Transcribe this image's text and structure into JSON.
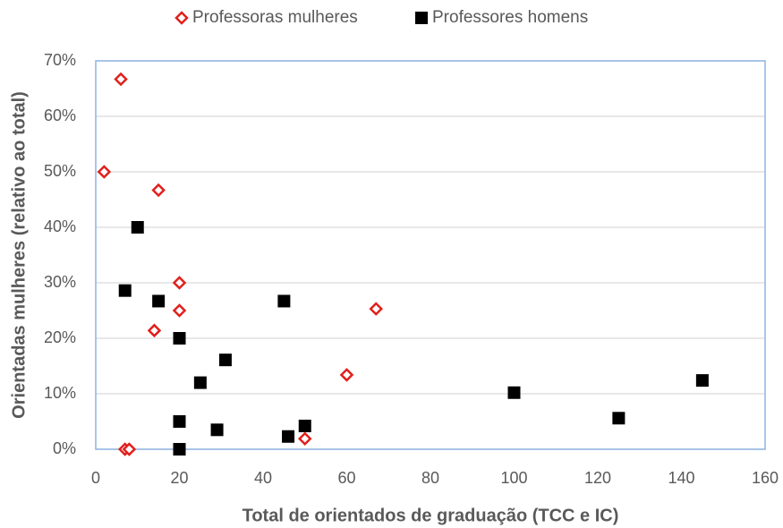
{
  "chart_data": {
    "type": "scatter",
    "xlabel": "Total de orientados de graduação (TCC e IC)",
    "ylabel": "Orientadas mulheres (relativo ao total)",
    "xlim": [
      0,
      160
    ],
    "xticks": [
      0,
      20,
      40,
      60,
      80,
      100,
      120,
      140,
      160
    ],
    "ylim": [
      0,
      70
    ],
    "yticks": [
      {
        "value": 0,
        "label": "0%"
      },
      {
        "value": 10,
        "label": "10%"
      },
      {
        "value": 20,
        "label": "20%"
      },
      {
        "value": 30,
        "label": "30%"
      },
      {
        "value": 40,
        "label": "40%"
      },
      {
        "value": 50,
        "label": "50%"
      },
      {
        "value": 60,
        "label": "60%"
      },
      {
        "value": 70,
        "label": "70%"
      }
    ],
    "grid": true,
    "legend": "top",
    "series": [
      {
        "name": "Professoras mulheres",
        "color": "#e0201b",
        "marker": "diamond",
        "x": [
          6,
          2,
          15,
          20,
          20,
          14,
          67,
          60,
          50,
          7,
          8
        ],
        "values": [
          66.7,
          50,
          46.7,
          30,
          25,
          21.4,
          25.3,
          13.4,
          1.9,
          0,
          0
        ]
      },
      {
        "name": "Professores homens",
        "color": "#000000",
        "marker": "square",
        "x": [
          10,
          7,
          15,
          20,
          31,
          25,
          45,
          20,
          20,
          29,
          46,
          50,
          100,
          125,
          145
        ],
        "values": [
          40,
          28.6,
          26.7,
          20,
          16.1,
          12,
          26.7,
          5,
          0,
          3.5,
          2.3,
          4.2,
          10.2,
          5.6,
          12.4
        ]
      }
    ]
  }
}
